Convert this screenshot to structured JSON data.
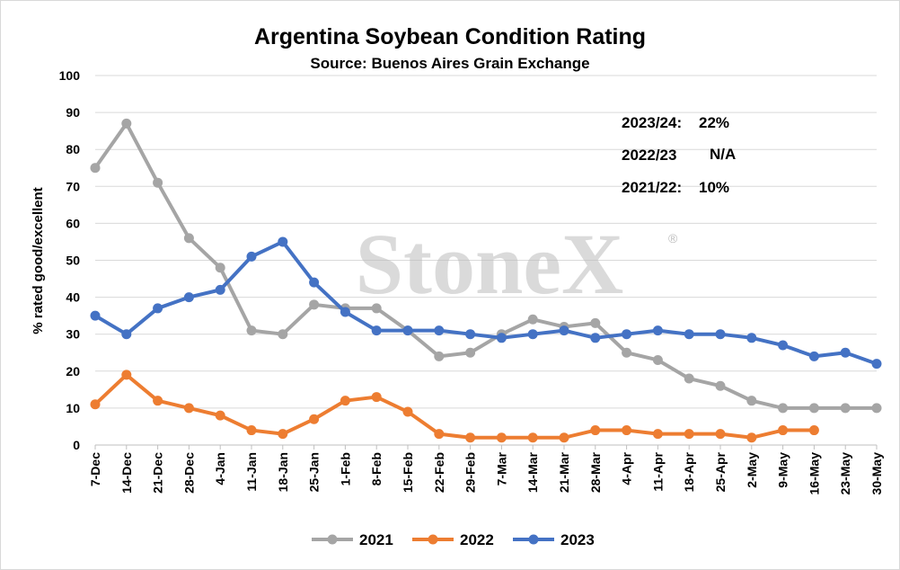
{
  "title": "Argentina Soybean Condition Rating",
  "subtitle": "Source: Buenos Aires Grain Exchange",
  "watermark": "StoneX",
  "watermark_mark": "®",
  "annotations": [
    {
      "label": "2023/24:",
      "value": "22%"
    },
    {
      "label": "2022/23",
      "value": "N/A"
    },
    {
      "label": "2021/22:",
      "value": "10%"
    }
  ],
  "chart_data": {
    "type": "line",
    "title": "Argentina Soybean Condition Rating",
    "subtitle": "Source: Buenos Aires Grain Exchange",
    "xlabel": "",
    "ylabel": "% rated good/excellent",
    "ylim": [
      0,
      100
    ],
    "yticks": [
      0,
      10,
      20,
      30,
      40,
      50,
      60,
      70,
      80,
      90,
      100
    ],
    "grid": true,
    "legend_position": "bottom",
    "categories": [
      "7-Dec",
      "14-Dec",
      "21-Dec",
      "28-Dec",
      "4-Jan",
      "11-Jan",
      "18-Jan",
      "25-Jan",
      "1-Feb",
      "8-Feb",
      "15-Feb",
      "22-Feb",
      "29-Feb",
      "7-Mar",
      "14-Mar",
      "21-Mar",
      "28-Mar",
      "4-Apr",
      "11-Apr",
      "18-Apr",
      "25-Apr",
      "2-May",
      "9-May",
      "16-May",
      "23-May",
      "30-May"
    ],
    "series": [
      {
        "name": "2021",
        "color": "#a5a5a5",
        "values": [
          75,
          87,
          71,
          56,
          48,
          31,
          30,
          38,
          37,
          37,
          31,
          24,
          25,
          30,
          34,
          32,
          33,
          25,
          23,
          18,
          16,
          12,
          10,
          10,
          10,
          10
        ]
      },
      {
        "name": "2022",
        "color": "#ed7d31",
        "values": [
          11,
          19,
          12,
          10,
          8,
          4,
          3,
          7,
          12,
          13,
          9,
          3,
          2,
          2,
          2,
          2,
          4,
          4,
          3,
          3,
          3,
          2,
          4,
          4,
          null,
          null
        ]
      },
      {
        "name": "2023",
        "color": "#4472c4",
        "values": [
          35,
          30,
          37,
          40,
          42,
          51,
          55,
          44,
          36,
          31,
          31,
          31,
          30,
          29,
          30,
          31,
          29,
          30,
          31,
          30,
          30,
          29,
          27,
          24,
          25,
          22
        ]
      }
    ]
  }
}
